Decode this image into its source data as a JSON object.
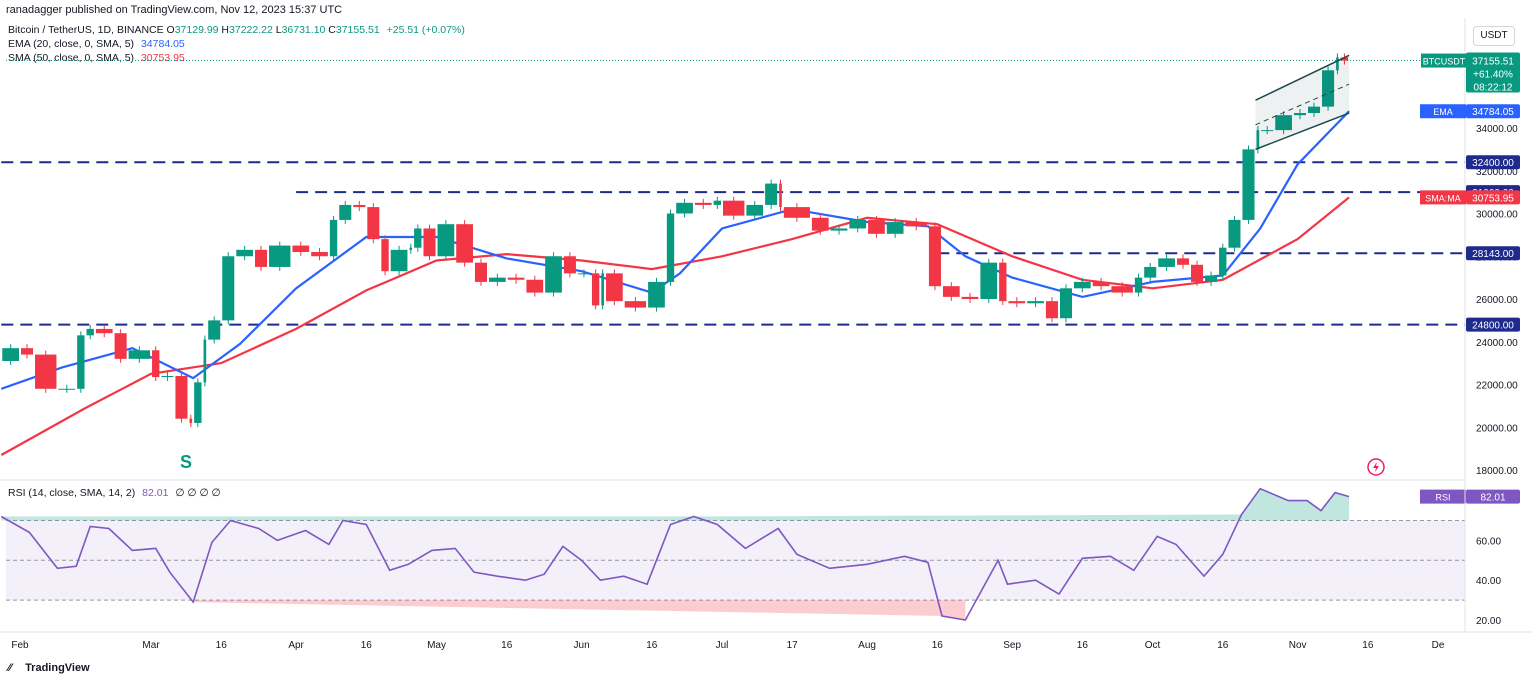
{
  "header": {
    "published": "ranadagger published on TradingView.com, Nov 12, 2023 15:37 UTC",
    "symbol": "Bitcoin / TetherUS, 1D, BINANCE",
    "ohlc": [
      {
        "k": "O",
        "v": "37129.99"
      },
      {
        "k": "H",
        "v": "37222.22"
      },
      {
        "k": "L",
        "v": "36731.10"
      },
      {
        "k": "C",
        "v": "37155.51"
      }
    ],
    "change": "+25.51 (+0.07%)",
    "ema_label": "EMA (20, close, 0, SMA, 5)",
    "ema_value": "34784.05",
    "sma_label": "SMA (50, close, 0, SMA, 5)",
    "sma_value": "30753.95",
    "currency": "USDT"
  },
  "rsi_legend": {
    "label": "RSI (14, close, SMA, 14, 2)",
    "value": "82.01",
    "extras": "∅ ∅ ∅ ∅"
  },
  "footer": {
    "brand": "TradingView"
  },
  "annotation": {
    "text": "S"
  },
  "colors": {
    "up": "#089981",
    "down": "#f23645",
    "ema": "#2962ff",
    "sma": "#f23645",
    "level": "#1e2a8c",
    "rsi": "#7e57c2",
    "channel": "#1f4a4a"
  },
  "chart_data": {
    "type": "candlestick",
    "title": "Bitcoin / TetherUS, 1D, BINANCE",
    "y_ticks": [
      18000,
      20000,
      22000,
      24000,
      26000,
      28000,
      30000,
      32000,
      34000
    ],
    "y_tick_labels": [
      "18000.00",
      "20000.00",
      "22000.00",
      "24000.00",
      "26000.00",
      "28000.00",
      "30000.00",
      "32000.00",
      "34000.00"
    ],
    "x_ticks": [
      {
        "date": "2023-02-01",
        "label": "Feb"
      },
      {
        "date": "2023-03-01",
        "label": "Mar"
      },
      {
        "date": "2023-03-16",
        "label": "16"
      },
      {
        "date": "2023-04-01",
        "label": "Apr"
      },
      {
        "date": "2023-04-16",
        "label": "16"
      },
      {
        "date": "2023-05-01",
        "label": "May"
      },
      {
        "date": "2023-05-16",
        "label": "16"
      },
      {
        "date": "2023-06-01",
        "label": "Jun"
      },
      {
        "date": "2023-06-16",
        "label": "16"
      },
      {
        "date": "2023-07-01",
        "label": "Jul"
      },
      {
        "date": "2023-07-16",
        "label": "17"
      },
      {
        "date": "2023-08-01",
        "label": "Aug"
      },
      {
        "date": "2023-08-16",
        "label": "16"
      },
      {
        "date": "2023-09-01",
        "label": "Sep"
      },
      {
        "date": "2023-09-16",
        "label": "16"
      },
      {
        "date": "2023-10-01",
        "label": "Oct"
      },
      {
        "date": "2023-10-16",
        "label": "16"
      },
      {
        "date": "2023-11-01",
        "label": "Nov"
      },
      {
        "date": "2023-11-16",
        "label": "16"
      },
      {
        "date": "2023-12-01",
        "label": "De"
      }
    ],
    "levels": [
      {
        "price": 32400,
        "label": "32400.00"
      },
      {
        "price": 31000,
        "label": "31000.00"
      },
      {
        "price": 28143,
        "label": "28143.00"
      },
      {
        "price": 24800,
        "label": "24800.00"
      }
    ],
    "level_starts": [
      "2023-01-28",
      "2023-04-01",
      "2023-08-16",
      "2023-01-28"
    ],
    "channel": {
      "upper": [
        {
          "date": "2023-10-23",
          "price": 35300
        },
        {
          "date": "2023-11-12",
          "price": 37400
        }
      ],
      "lower": [
        {
          "date": "2023-10-23",
          "price": 33000
        },
        {
          "date": "2023-11-12",
          "price": 34700
        }
      ],
      "mid": [
        {
          "date": "2023-10-23",
          "price": 34150
        },
        {
          "date": "2023-11-12",
          "price": 36050
        }
      ]
    },
    "last_price": {
      "symbol": "BTCUSDT",
      "price": "37155.51",
      "change": "+61.40%",
      "countdown": "08:22:12",
      "value": 37155.51
    },
    "ema_tag": {
      "name": "EMA",
      "price": "34784.05",
      "value": 34784.05
    },
    "sma_tag": {
      "name": "SMA:MA",
      "price": "30753.95",
      "value": 30753.95
    },
    "closes": [
      {
        "date": "2023-01-28",
        "close": 23100
      },
      {
        "date": "2023-02-01",
        "close": 23700
      },
      {
        "date": "2023-02-04",
        "close": 23400
      },
      {
        "date": "2023-02-09",
        "close": 21800
      },
      {
        "date": "2023-02-13",
        "close": 21800
      },
      {
        "date": "2023-02-15",
        "close": 24300
      },
      {
        "date": "2023-02-17",
        "close": 24600
      },
      {
        "date": "2023-02-21",
        "close": 24400
      },
      {
        "date": "2023-02-24",
        "close": 23200
      },
      {
        "date": "2023-03-01",
        "close": 23600
      },
      {
        "date": "2023-03-03",
        "close": 22350
      },
      {
        "date": "2023-03-06",
        "close": 22400
      },
      {
        "date": "2023-03-09",
        "close": 20400
      },
      {
        "date": "2023-03-10",
        "close": 20200
      },
      {
        "date": "2023-03-12",
        "close": 22100
      },
      {
        "date": "2023-03-13",
        "close": 24100
      },
      {
        "date": "2023-03-16",
        "close": 25000
      },
      {
        "date": "2023-03-19",
        "close": 28000
      },
      {
        "date": "2023-03-23",
        "close": 28300
      },
      {
        "date": "2023-03-26",
        "close": 27500
      },
      {
        "date": "2023-03-31",
        "close": 28500
      },
      {
        "date": "2023-04-04",
        "close": 28200
      },
      {
        "date": "2023-04-08",
        "close": 28000
      },
      {
        "date": "2023-04-10",
        "close": 29700
      },
      {
        "date": "2023-04-13",
        "close": 30400
      },
      {
        "date": "2023-04-16",
        "close": 30300
      },
      {
        "date": "2023-04-19",
        "close": 28800
      },
      {
        "date": "2023-04-21",
        "close": 27300
      },
      {
        "date": "2023-04-25",
        "close": 28300
      },
      {
        "date": "2023-04-26",
        "close": 28400
      },
      {
        "date": "2023-04-28",
        "close": 29300
      },
      {
        "date": "2023-05-01",
        "close": 28000
      },
      {
        "date": "2023-05-05",
        "close": 29500
      },
      {
        "date": "2023-05-09",
        "close": 27700
      },
      {
        "date": "2023-05-12",
        "close": 26800
      },
      {
        "date": "2023-05-16",
        "close": 27000
      },
      {
        "date": "2023-05-20",
        "close": 26900
      },
      {
        "date": "2023-05-24",
        "close": 26300
      },
      {
        "date": "2023-05-28",
        "close": 28000
      },
      {
        "date": "2023-05-31",
        "close": 27200
      },
      {
        "date": "2023-06-03",
        "close": 27200
      },
      {
        "date": "2023-06-05",
        "close": 25700
      },
      {
        "date": "2023-06-06",
        "close": 27200
      },
      {
        "date": "2023-06-10",
        "close": 25900
      },
      {
        "date": "2023-06-15",
        "close": 25600
      },
      {
        "date": "2023-06-19",
        "close": 26800
      },
      {
        "date": "2023-06-21",
        "close": 30000
      },
      {
        "date": "2023-06-25",
        "close": 30500
      },
      {
        "date": "2023-06-29",
        "close": 30400
      },
      {
        "date": "2023-07-01",
        "close": 30600
      },
      {
        "date": "2023-07-06",
        "close": 29900
      },
      {
        "date": "2023-07-10",
        "close": 30400
      },
      {
        "date": "2023-07-13",
        "close": 31400
      },
      {
        "date": "2023-07-14",
        "close": 30300
      },
      {
        "date": "2023-07-20",
        "close": 29800
      },
      {
        "date": "2023-07-24",
        "close": 29200
      },
      {
        "date": "2023-07-28",
        "close": 29300
      },
      {
        "date": "2023-08-01",
        "close": 29700
      },
      {
        "date": "2023-08-05",
        "close": 29050
      },
      {
        "date": "2023-08-09",
        "close": 29600
      },
      {
        "date": "2023-08-14",
        "close": 29400
      },
      {
        "date": "2023-08-17",
        "close": 26600
      },
      {
        "date": "2023-08-21",
        "close": 26100
      },
      {
        "date": "2023-08-25",
        "close": 26000
      },
      {
        "date": "2023-08-29",
        "close": 27700
      },
      {
        "date": "2023-08-31",
        "close": 25900
      },
      {
        "date": "2023-09-04",
        "close": 25800
      },
      {
        "date": "2023-09-08",
        "close": 25900
      },
      {
        "date": "2023-09-11",
        "close": 25100
      },
      {
        "date": "2023-09-14",
        "close": 26500
      },
      {
        "date": "2023-09-18",
        "close": 26800
      },
      {
        "date": "2023-09-22",
        "close": 26600
      },
      {
        "date": "2023-09-27",
        "close": 26300
      },
      {
        "date": "2023-09-29",
        "close": 27000
      },
      {
        "date": "2023-10-02",
        "close": 27500
      },
      {
        "date": "2023-10-06",
        "close": 27900
      },
      {
        "date": "2023-10-09",
        "close": 27600
      },
      {
        "date": "2023-10-12",
        "close": 26800
      },
      {
        "date": "2023-10-15",
        "close": 27100
      },
      {
        "date": "2023-10-17",
        "close": 28400
      },
      {
        "date": "2023-10-20",
        "close": 29700
      },
      {
        "date": "2023-10-23",
        "close": 33000
      },
      {
        "date": "2023-10-24",
        "close": 33900
      },
      {
        "date": "2023-10-27",
        "close": 33900
      },
      {
        "date": "2023-10-31",
        "close": 34600
      },
      {
        "date": "2023-11-03",
        "close": 34700
      },
      {
        "date": "2023-11-06",
        "close": 35000
      },
      {
        "date": "2023-11-09",
        "close": 36700
      },
      {
        "date": "2023-11-10",
        "close": 37300
      },
      {
        "date": "2023-11-12",
        "close": 37155.51
      }
    ],
    "ema20": [
      {
        "date": "2023-01-28",
        "value": 21800
      },
      {
        "date": "2023-02-10",
        "value": 22800
      },
      {
        "date": "2023-02-25",
        "value": 23700
      },
      {
        "date": "2023-03-10",
        "value": 22300
      },
      {
        "date": "2023-03-20",
        "value": 23900
      },
      {
        "date": "2023-04-01",
        "value": 26500
      },
      {
        "date": "2023-04-16",
        "value": 28900
      },
      {
        "date": "2023-05-01",
        "value": 28900
      },
      {
        "date": "2023-05-16",
        "value": 27900
      },
      {
        "date": "2023-06-01",
        "value": 27300
      },
      {
        "date": "2023-06-16",
        "value": 26300
      },
      {
        "date": "2023-06-22",
        "value": 27200
      },
      {
        "date": "2023-07-01",
        "value": 29300
      },
      {
        "date": "2023-07-16",
        "value": 30200
      },
      {
        "date": "2023-08-01",
        "value": 29600
      },
      {
        "date": "2023-08-14",
        "value": 29400
      },
      {
        "date": "2023-08-22",
        "value": 28000
      },
      {
        "date": "2023-09-01",
        "value": 27000
      },
      {
        "date": "2023-09-16",
        "value": 26100
      },
      {
        "date": "2023-10-01",
        "value": 26800
      },
      {
        "date": "2023-10-16",
        "value": 27100
      },
      {
        "date": "2023-10-24",
        "value": 29300
      },
      {
        "date": "2023-11-01",
        "value": 32300
      },
      {
        "date": "2023-11-12",
        "value": 34784.05
      }
    ],
    "sma50": [
      {
        "date": "2023-01-28",
        "value": 18700
      },
      {
        "date": "2023-02-15",
        "value": 20900
      },
      {
        "date": "2023-03-01",
        "value": 22500
      },
      {
        "date": "2023-03-16",
        "value": 23000
      },
      {
        "date": "2023-04-01",
        "value": 24600
      },
      {
        "date": "2023-04-16",
        "value": 26400
      },
      {
        "date": "2023-05-01",
        "value": 27800
      },
      {
        "date": "2023-05-16",
        "value": 28100
      },
      {
        "date": "2023-06-01",
        "value": 27800
      },
      {
        "date": "2023-06-16",
        "value": 27400
      },
      {
        "date": "2023-07-01",
        "value": 28000
      },
      {
        "date": "2023-07-16",
        "value": 28800
      },
      {
        "date": "2023-08-01",
        "value": 29800
      },
      {
        "date": "2023-08-16",
        "value": 29500
      },
      {
        "date": "2023-09-01",
        "value": 28000
      },
      {
        "date": "2023-09-16",
        "value": 26900
      },
      {
        "date": "2023-10-01",
        "value": 26500
      },
      {
        "date": "2023-10-16",
        "value": 26900
      },
      {
        "date": "2023-11-01",
        "value": 28800
      },
      {
        "date": "2023-11-12",
        "value": 30753.95
      }
    ],
    "rsi": {
      "ticks": [
        20,
        40,
        60
      ],
      "tick_labels": [
        "20.00",
        "40.00",
        "60.00"
      ],
      "bands": [
        30,
        50,
        70
      ],
      "values": [
        {
          "date": "2023-01-28",
          "value": 72
        },
        {
          "date": "2023-02-03",
          "value": 64
        },
        {
          "date": "2023-02-09",
          "value": 46
        },
        {
          "date": "2023-02-13",
          "value": 47
        },
        {
          "date": "2023-02-16",
          "value": 67
        },
        {
          "date": "2023-02-20",
          "value": 66
        },
        {
          "date": "2023-02-25",
          "value": 55
        },
        {
          "date": "2023-03-02",
          "value": 56
        },
        {
          "date": "2023-03-05",
          "value": 44
        },
        {
          "date": "2023-03-10",
          "value": 29
        },
        {
          "date": "2023-03-14",
          "value": 59
        },
        {
          "date": "2023-03-18",
          "value": 70
        },
        {
          "date": "2023-03-24",
          "value": 66
        },
        {
          "date": "2023-03-28",
          "value": 60
        },
        {
          "date": "2023-04-03",
          "value": 65
        },
        {
          "date": "2023-04-08",
          "value": 58
        },
        {
          "date": "2023-04-11",
          "value": 70
        },
        {
          "date": "2023-04-16",
          "value": 68
        },
        {
          "date": "2023-04-21",
          "value": 45
        },
        {
          "date": "2023-04-25",
          "value": 48
        },
        {
          "date": "2023-04-30",
          "value": 55
        },
        {
          "date": "2023-05-05",
          "value": 56
        },
        {
          "date": "2023-05-09",
          "value": 44
        },
        {
          "date": "2023-05-14",
          "value": 42
        },
        {
          "date": "2023-05-20",
          "value": 40
        },
        {
          "date": "2023-05-24",
          "value": 43
        },
        {
          "date": "2023-05-28",
          "value": 57
        },
        {
          "date": "2023-06-01",
          "value": 50
        },
        {
          "date": "2023-06-05",
          "value": 40
        },
        {
          "date": "2023-06-10",
          "value": 42
        },
        {
          "date": "2023-06-15",
          "value": 38
        },
        {
          "date": "2023-06-20",
          "value": 68
        },
        {
          "date": "2023-06-25",
          "value": 72
        },
        {
          "date": "2023-06-30",
          "value": 68
        },
        {
          "date": "2023-07-06",
          "value": 56
        },
        {
          "date": "2023-07-13",
          "value": 66
        },
        {
          "date": "2023-07-17",
          "value": 53
        },
        {
          "date": "2023-07-24",
          "value": 46
        },
        {
          "date": "2023-08-01",
          "value": 48
        },
        {
          "date": "2023-08-09",
          "value": 52
        },
        {
          "date": "2023-08-14",
          "value": 49
        },
        {
          "date": "2023-08-17",
          "value": 22
        },
        {
          "date": "2023-08-22",
          "value": 20
        },
        {
          "date": "2023-08-29",
          "value": 50
        },
        {
          "date": "2023-08-31",
          "value": 38
        },
        {
          "date": "2023-09-06",
          "value": 40
        },
        {
          "date": "2023-09-11",
          "value": 33
        },
        {
          "date": "2023-09-16",
          "value": 51
        },
        {
          "date": "2023-09-22",
          "value": 52
        },
        {
          "date": "2023-09-27",
          "value": 45
        },
        {
          "date": "2023-10-02",
          "value": 62
        },
        {
          "date": "2023-10-06",
          "value": 58
        },
        {
          "date": "2023-10-12",
          "value": 42
        },
        {
          "date": "2023-10-16",
          "value": 53
        },
        {
          "date": "2023-10-20",
          "value": 73
        },
        {
          "date": "2023-10-24",
          "value": 86
        },
        {
          "date": "2023-10-30",
          "value": 80
        },
        {
          "date": "2023-11-03",
          "value": 80
        },
        {
          "date": "2023-11-06",
          "value": 75
        },
        {
          "date": "2023-11-09",
          "value": 84
        },
        {
          "date": "2023-11-12",
          "value": 82.01
        }
      ],
      "last": {
        "name": "RSI",
        "value": "82.01"
      }
    }
  }
}
